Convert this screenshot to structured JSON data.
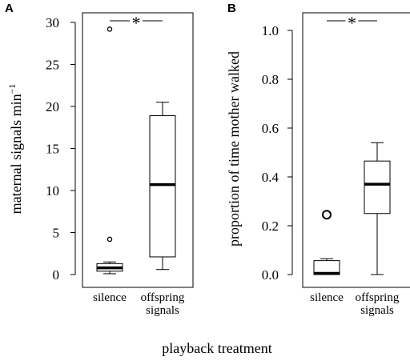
{
  "figure": {
    "xlabel": "playback treatment"
  },
  "chart_data": [
    {
      "type": "boxplot",
      "panel": "A",
      "ylabel": "maternal signals min",
      "ylabel_sup": "−1",
      "ylim": [
        0,
        30
      ],
      "yticks": [
        0,
        5,
        10,
        15,
        20,
        25,
        30
      ],
      "categories": [
        {
          "label": [
            "silence"
          ],
          "min": 0.1,
          "q1": 0.4,
          "median": 0.8,
          "q3": 1.3,
          "max": 1.5,
          "outliers": [
            4.2,
            29.2
          ]
        },
        {
          "label": [
            "offspring",
            "signals"
          ],
          "min": 0.6,
          "q1": 2.1,
          "median": 10.7,
          "q3": 18.9,
          "max": 20.5,
          "outliers": []
        }
      ],
      "significance": "*"
    },
    {
      "type": "boxplot",
      "panel": "B",
      "ylabel": "proportion of time mother walked",
      "ylabel_sup": "",
      "ylim": [
        0,
        1.0
      ],
      "yticks": [
        "0.0",
        "0.2",
        "0.4",
        "0.6",
        "0.8",
        "1.0"
      ],
      "categories": [
        {
          "label": [
            "silence"
          ],
          "min": 0.0,
          "q1": 0.0,
          "median": 0.005,
          "q3": 0.057,
          "max": 0.065,
          "outliers": [
            0.245
          ]
        },
        {
          "label": [
            "offspring",
            "signals"
          ],
          "min": 0.0,
          "q1": 0.25,
          "median": 0.37,
          "q3": 0.465,
          "max": 0.54,
          "outliers": []
        }
      ],
      "significance": "*"
    }
  ]
}
